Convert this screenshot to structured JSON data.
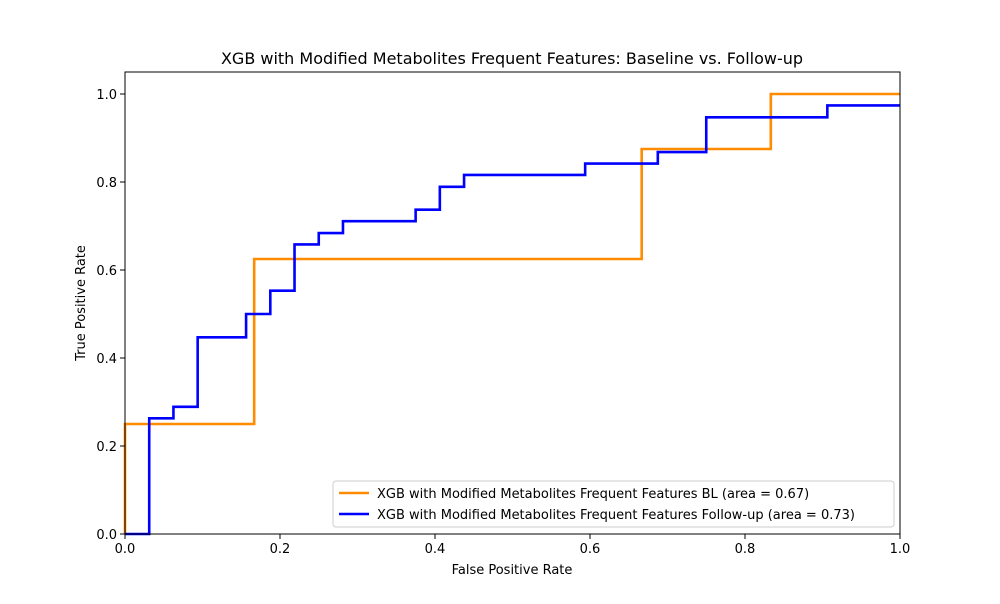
{
  "chart_data": {
    "type": "line",
    "title": "XGB with Modified Metabolites Frequent Features: Baseline vs. Follow-up",
    "xlabel": "False Positive Rate",
    "ylabel": "True Positive Rate",
    "xlim": [
      0.0,
      1.0
    ],
    "ylim": [
      0.0,
      1.05
    ],
    "xticks": [
      "0.0",
      "0.2",
      "0.4",
      "0.6",
      "0.8",
      "1.0"
    ],
    "yticks": [
      "0.0",
      "0.2",
      "0.4",
      "0.6",
      "0.8",
      "1.0"
    ],
    "grid": false,
    "legend_position": "lower-right",
    "series": [
      {
        "name": "XGB with Modified Metabolites Frequent Features BL (area = 0.67)",
        "color": "#ff8c00",
        "step": true,
        "x": [
          0.0,
          0.0,
          0.1667,
          0.1667,
          0.6667,
          0.6667,
          0.8333,
          0.8333,
          1.0
        ],
        "y": [
          0.0,
          0.25,
          0.25,
          0.625,
          0.625,
          0.875,
          0.875,
          1.0,
          1.0
        ]
      },
      {
        "name": "XGB with Modified Metabolites Frequent Features Follow-up (area = 0.73)",
        "color": "#0000ff",
        "step": true,
        "x": [
          0.0,
          0.03125,
          0.03125,
          0.0625,
          0.0625,
          0.09375,
          0.09375,
          0.15625,
          0.15625,
          0.1875,
          0.1875,
          0.21875,
          0.21875,
          0.25,
          0.25,
          0.28125,
          0.28125,
          0.375,
          0.375,
          0.40625,
          0.40625,
          0.4375,
          0.4375,
          0.59375,
          0.59375,
          0.6875,
          0.6875,
          0.75,
          0.75,
          0.90625,
          0.90625,
          1.0
        ],
        "y": [
          0.0,
          0.0,
          0.263,
          0.263,
          0.289,
          0.289,
          0.447,
          0.447,
          0.5,
          0.5,
          0.553,
          0.553,
          0.658,
          0.658,
          0.684,
          0.684,
          0.711,
          0.711,
          0.737,
          0.737,
          0.789,
          0.789,
          0.816,
          0.816,
          0.842,
          0.842,
          0.868,
          0.868,
          0.947,
          0.947,
          0.974,
          0.974
        ]
      }
    ]
  }
}
